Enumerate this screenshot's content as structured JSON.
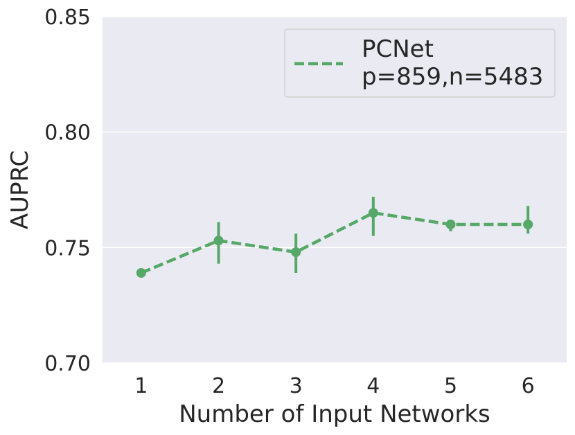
{
  "chart_data": {
    "type": "line",
    "title": "",
    "xlabel": "Number of Input Networks",
    "ylabel": "AUPRC",
    "x": [
      1,
      2,
      3,
      4,
      5,
      6
    ],
    "xticks": [
      "1",
      "2",
      "3",
      "4",
      "5",
      "6"
    ],
    "ylim": [
      0.7,
      0.85
    ],
    "yticks": [
      "0.70",
      "0.75",
      "0.80",
      "0.85"
    ],
    "grid": true,
    "legend_position": "top-right",
    "series": [
      {
        "name": "PCNet",
        "legend_sub": "p=859,n=5483",
        "color": "#55a868",
        "linestyle": "dashed",
        "values": [
          0.739,
          0.753,
          0.748,
          0.765,
          0.76,
          0.76
        ],
        "err_low": [
          0.739,
          0.743,
          0.739,
          0.755,
          0.757,
          0.756
        ],
        "err_high": [
          0.739,
          0.761,
          0.756,
          0.772,
          0.762,
          0.768
        ]
      }
    ]
  },
  "colors": {
    "plot_bg": "#eaeaf2",
    "grid": "#ffffff",
    "text": "#262626",
    "series": "#55a868"
  }
}
